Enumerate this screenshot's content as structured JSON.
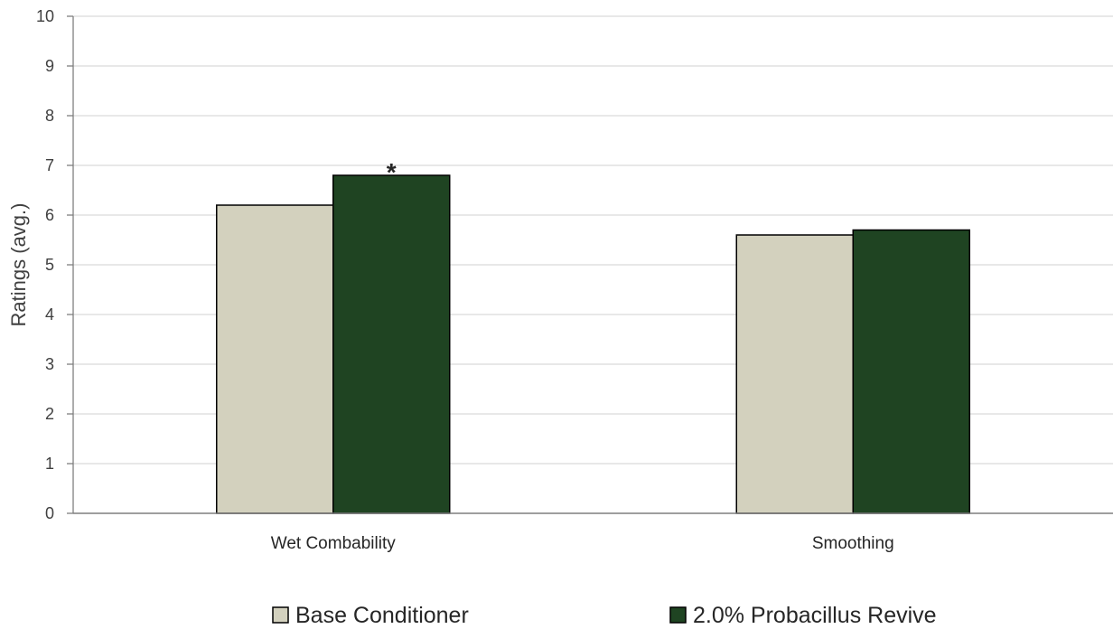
{
  "chart_data": {
    "type": "bar",
    "title": "",
    "xlabel": "",
    "ylabel": "Ratings (avg.)",
    "categories": [
      "Wet Combability",
      "Smoothing"
    ],
    "series": [
      {
        "name": "Base Conditioner",
        "values": [
          6.2,
          5.6
        ],
        "color": "#d3d1be"
      },
      {
        "name": "2.0% Probacillus Revive",
        "values": [
          6.8,
          5.7
        ],
        "color": "#1f4422"
      }
    ],
    "ylim": [
      0,
      10
    ],
    "yticks": [
      0,
      1,
      2,
      3,
      4,
      5,
      6,
      7,
      8,
      9,
      10
    ],
    "grid": true,
    "legend_position": "bottom",
    "annotations": [
      {
        "text": "*",
        "category": "Wet Combability",
        "series": "2.0% Probacillus Revive"
      }
    ]
  }
}
